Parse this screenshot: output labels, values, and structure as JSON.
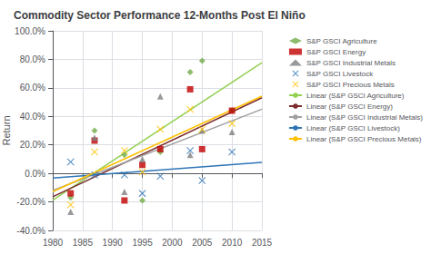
{
  "chart_data": {
    "type": "scatter",
    "title": "Commodity Sector Performance 12-Months Post El Niño",
    "y_label": "Return",
    "xlim": [
      1980,
      2015
    ],
    "ylim": [
      -0.4,
      1.0
    ],
    "xticks": [
      1980,
      1985,
      1990,
      1995,
      2000,
      2005,
      2010,
      2015
    ],
    "yticks": [
      {
        "value": -0.4,
        "label": "-40.0%"
      },
      {
        "value": -0.2,
        "label": "-20.0%"
      },
      {
        "value": 0.0,
        "label": "0.0%"
      },
      {
        "value": 0.2,
        "label": "20.0%"
      },
      {
        "value": 0.4,
        "label": "40.0%"
      },
      {
        "value": 0.6,
        "label": "60.0%"
      },
      {
        "value": 0.8,
        "label": "80.0%"
      },
      {
        "value": 1.0,
        "label": "100.0%"
      }
    ],
    "grid": true,
    "legend": "right",
    "series": [
      {
        "name": "S&P GSCI Agriculture",
        "type": "scatter",
        "color": "#70ad47",
        "marker": "diamond",
        "x": [
          1983,
          1987,
          1992,
          1995,
          1998,
          2003,
          2005,
          2010
        ],
        "values": [
          -0.17,
          0.3,
          0.13,
          -0.19,
          0.15,
          0.71,
          0.79,
          0.44
        ]
      },
      {
        "name": "S&P GSCI Energy",
        "type": "scatter",
        "color": "#c00000",
        "marker": "square",
        "x": [
          1983,
          1987,
          1992,
          1995,
          1998,
          2003,
          2005,
          2010
        ],
        "values": [
          -0.14,
          0.23,
          -0.19,
          0.06,
          0.17,
          0.59,
          0.17,
          0.44
        ]
      },
      {
        "name": "S&P GSCI Industrial Metals",
        "type": "scatter",
        "color": "#808080",
        "marker": "triangle",
        "x": [
          1983,
          1987,
          1992,
          1995,
          1998,
          2003,
          2005,
          2010
        ],
        "values": [
          -0.27,
          0.25,
          -0.13,
          0.1,
          0.54,
          0.13,
          0.3,
          0.29
        ]
      },
      {
        "name": "S&P GSCI Livestock",
        "type": "scatter",
        "color": "#2e75b6",
        "marker": "x",
        "x": [
          1983,
          1987,
          1992,
          1995,
          1998,
          2003,
          2005,
          2010
        ],
        "values": [
          0.08,
          -0.01,
          -0.01,
          -0.14,
          -0.02,
          0.16,
          -0.05,
          0.15
        ]
      },
      {
        "name": "S&P GSCI Precious Metals",
        "type": "scatter",
        "color": "#ffc000",
        "marker": "x",
        "x": [
          1983,
          1987,
          1992,
          1995,
          1998,
          2003,
          2005,
          2010
        ],
        "values": [
          -0.22,
          0.15,
          0.16,
          0.01,
          0.31,
          0.45,
          0.31,
          0.35
        ]
      },
      {
        "name": "Linear (S&P GSCI Agriculture)",
        "type": "line",
        "color": "#92d050",
        "x": [
          1980,
          2015
        ],
        "values": [
          -0.1883,
          0.7765
        ]
      },
      {
        "name": "Linear (S&P GSCI Energy)",
        "type": "line",
        "color": "#7b2c2c",
        "x": [
          1980,
          2015
        ],
        "values": [
          -0.1635,
          0.5307
        ]
      },
      {
        "name": "Linear (S&P GSCI Industrial Metals)",
        "type": "line",
        "color": "#a0a0a0",
        "x": [
          1980,
          2015
        ],
        "values": [
          -0.1196,
          0.4506
        ]
      },
      {
        "name": "Linear (S&P GSCI Livestock)",
        "type": "line",
        "color": "#2e75b6",
        "x": [
          1980,
          2015
        ],
        "values": [
          -0.0321,
          0.0776
        ]
      },
      {
        "name": "Linear (S&P GSCI Precious Metals)",
        "type": "line",
        "color": "#ffc000",
        "x": [
          1980,
          2015
        ],
        "values": [
          -0.1283,
          0.5418
        ]
      }
    ]
  }
}
